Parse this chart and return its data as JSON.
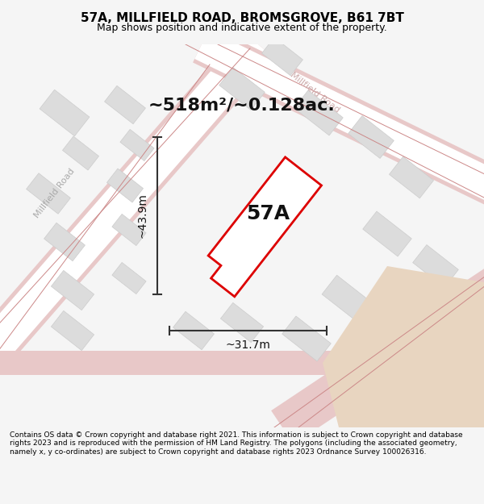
{
  "title": "57A, MILLFIELD ROAD, BROMSGROVE, B61 7BT",
  "subtitle": "Map shows position and indicative extent of the property.",
  "area_text": "~518m²/~0.128ac.",
  "label_57A": "57A",
  "dim_width": "~31.7m",
  "dim_height": "~43.9m",
  "road_label_1": "Millfield Road",
  "road_label_2": "Millfield Road",
  "footer": "Contains OS data © Crown copyright and database right 2021. This information is subject to Crown copyright and database rights 2023 and is reproduced with the permission of HM Land Registry. The polygons (including the associated geometry, namely x, y co-ordinates) are subject to Crown copyright and database rights 2023 Ordnance Survey 100026316.",
  "bg_color": "#f5f5f5",
  "map_bg": "#f0eeec",
  "building_fill": "#dcdcdc",
  "building_edge": "#cccccc",
  "road_color": "#e8c8c8",
  "highlight_fill": "#ffffff",
  "highlight_edge": "#dd0000",
  "footer_bg": "#ffffff",
  "title_bg": "#ffffff",
  "sand_color": "#e8d5c0"
}
